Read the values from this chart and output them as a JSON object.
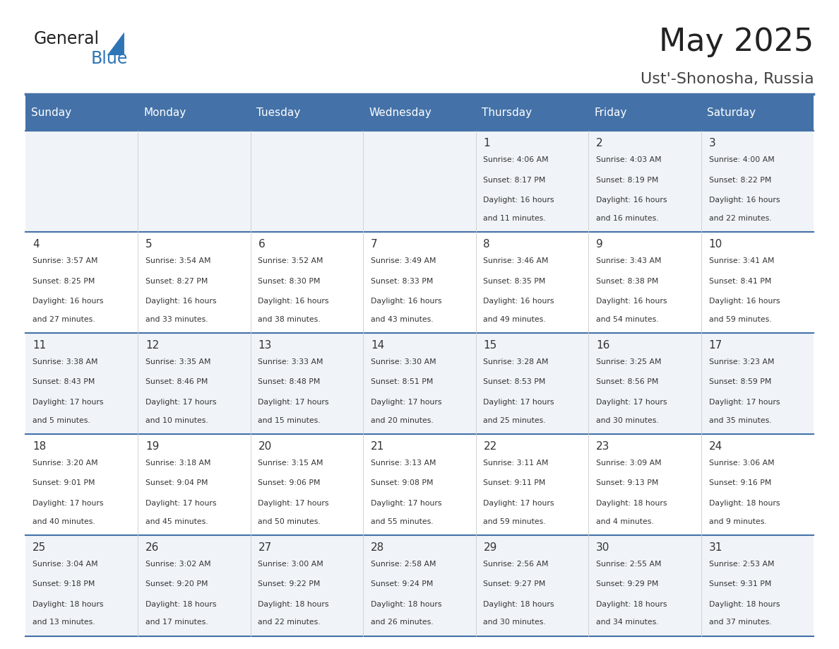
{
  "title": "May 2025",
  "subtitle": "Ust'-Shonosha, Russia",
  "days_of_week": [
    "Sunday",
    "Monday",
    "Tuesday",
    "Wednesday",
    "Thursday",
    "Friday",
    "Saturday"
  ],
  "header_bg": "#4472a8",
  "header_text": "#ffffff",
  "odd_row_bg": "#f0f4f8",
  "even_row_bg": "#ffffff",
  "separator_color": "#4472a8",
  "day_number_color": "#333333",
  "cell_text_color": "#333333",
  "title_color": "#222222",
  "subtitle_color": "#444444",
  "general_color": "#222222",
  "blue_color": "#2e75b6",
  "calendar_data": [
    [
      null,
      null,
      null,
      null,
      {
        "day": 1,
        "sunrise": "4:06 AM",
        "sunset": "8:17 PM",
        "daylight": "16 hours and 11 minutes"
      },
      {
        "day": 2,
        "sunrise": "4:03 AM",
        "sunset": "8:19 PM",
        "daylight": "16 hours and 16 minutes"
      },
      {
        "day": 3,
        "sunrise": "4:00 AM",
        "sunset": "8:22 PM",
        "daylight": "16 hours and 22 minutes"
      }
    ],
    [
      {
        "day": 4,
        "sunrise": "3:57 AM",
        "sunset": "8:25 PM",
        "daylight": "16 hours and 27 minutes"
      },
      {
        "day": 5,
        "sunrise": "3:54 AM",
        "sunset": "8:27 PM",
        "daylight": "16 hours and 33 minutes"
      },
      {
        "day": 6,
        "sunrise": "3:52 AM",
        "sunset": "8:30 PM",
        "daylight": "16 hours and 38 minutes"
      },
      {
        "day": 7,
        "sunrise": "3:49 AM",
        "sunset": "8:33 PM",
        "daylight": "16 hours and 43 minutes"
      },
      {
        "day": 8,
        "sunrise": "3:46 AM",
        "sunset": "8:35 PM",
        "daylight": "16 hours and 49 minutes"
      },
      {
        "day": 9,
        "sunrise": "3:43 AM",
        "sunset": "8:38 PM",
        "daylight": "16 hours and 54 minutes"
      },
      {
        "day": 10,
        "sunrise": "3:41 AM",
        "sunset": "8:41 PM",
        "daylight": "16 hours and 59 minutes"
      }
    ],
    [
      {
        "day": 11,
        "sunrise": "3:38 AM",
        "sunset": "8:43 PM",
        "daylight": "17 hours and 5 minutes"
      },
      {
        "day": 12,
        "sunrise": "3:35 AM",
        "sunset": "8:46 PM",
        "daylight": "17 hours and 10 minutes"
      },
      {
        "day": 13,
        "sunrise": "3:33 AM",
        "sunset": "8:48 PM",
        "daylight": "17 hours and 15 minutes"
      },
      {
        "day": 14,
        "sunrise": "3:30 AM",
        "sunset": "8:51 PM",
        "daylight": "17 hours and 20 minutes"
      },
      {
        "day": 15,
        "sunrise": "3:28 AM",
        "sunset": "8:53 PM",
        "daylight": "17 hours and 25 minutes"
      },
      {
        "day": 16,
        "sunrise": "3:25 AM",
        "sunset": "8:56 PM",
        "daylight": "17 hours and 30 minutes"
      },
      {
        "day": 17,
        "sunrise": "3:23 AM",
        "sunset": "8:59 PM",
        "daylight": "17 hours and 35 minutes"
      }
    ],
    [
      {
        "day": 18,
        "sunrise": "3:20 AM",
        "sunset": "9:01 PM",
        "daylight": "17 hours and 40 minutes"
      },
      {
        "day": 19,
        "sunrise": "3:18 AM",
        "sunset": "9:04 PM",
        "daylight": "17 hours and 45 minutes"
      },
      {
        "day": 20,
        "sunrise": "3:15 AM",
        "sunset": "9:06 PM",
        "daylight": "17 hours and 50 minutes"
      },
      {
        "day": 21,
        "sunrise": "3:13 AM",
        "sunset": "9:08 PM",
        "daylight": "17 hours and 55 minutes"
      },
      {
        "day": 22,
        "sunrise": "3:11 AM",
        "sunset": "9:11 PM",
        "daylight": "17 hours and 59 minutes"
      },
      {
        "day": 23,
        "sunrise": "3:09 AM",
        "sunset": "9:13 PM",
        "daylight": "18 hours and 4 minutes"
      },
      {
        "day": 24,
        "sunrise": "3:06 AM",
        "sunset": "9:16 PM",
        "daylight": "18 hours and 9 minutes"
      }
    ],
    [
      {
        "day": 25,
        "sunrise": "3:04 AM",
        "sunset": "9:18 PM",
        "daylight": "18 hours and 13 minutes"
      },
      {
        "day": 26,
        "sunrise": "3:02 AM",
        "sunset": "9:20 PM",
        "daylight": "18 hours and 17 minutes"
      },
      {
        "day": 27,
        "sunrise": "3:00 AM",
        "sunset": "9:22 PM",
        "daylight": "18 hours and 22 minutes"
      },
      {
        "day": 28,
        "sunrise": "2:58 AM",
        "sunset": "9:24 PM",
        "daylight": "18 hours and 26 minutes"
      },
      {
        "day": 29,
        "sunrise": "2:56 AM",
        "sunset": "9:27 PM",
        "daylight": "18 hours and 30 minutes"
      },
      {
        "day": 30,
        "sunrise": "2:55 AM",
        "sunset": "9:29 PM",
        "daylight": "18 hours and 34 minutes"
      },
      {
        "day": 31,
        "sunrise": "2:53 AM",
        "sunset": "9:31 PM",
        "daylight": "18 hours and 37 minutes"
      }
    ]
  ]
}
